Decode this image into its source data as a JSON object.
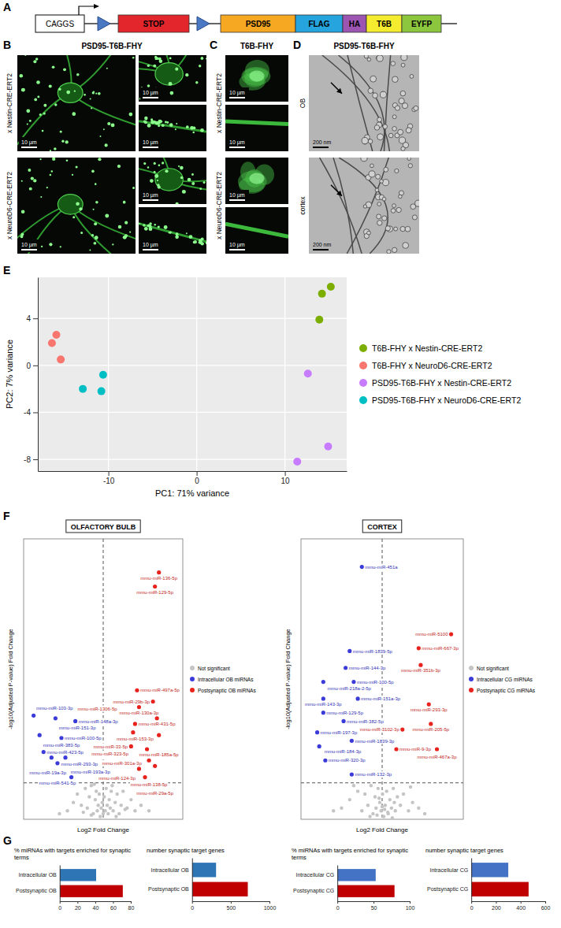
{
  "panel_letters": [
    "A",
    "B",
    "C",
    "D",
    "E",
    "F",
    "G"
  ],
  "construct": {
    "promoter": "CAGGS",
    "elements": [
      {
        "label": "STOP",
        "color": "#e3262b"
      },
      {
        "label": "PSD95",
        "color": "#f7a823"
      },
      {
        "label": "FLAG",
        "color": "#25a4dd"
      },
      {
        "label": "HA",
        "color": "#9c55b0"
      },
      {
        "label": "T6B",
        "color": "#f5ec2f"
      },
      {
        "label": "EYFP",
        "color": "#8cc63f"
      }
    ]
  },
  "images": {
    "B": {
      "title": "PSD95-T6B-FHY",
      "rows": [
        "x Nestin-CRE-ERT2",
        "x NeuroD6-CRE-ERT2"
      ],
      "scale_bar": "10 µm"
    },
    "C": {
      "title": "T6B-FHY",
      "rows": [
        "x Nestin-CRE-ERT2",
        "x NeuroD6-CRE-ERT2"
      ],
      "scale_bar": "10 µm"
    },
    "D": {
      "title": "PSD95-T6B-FHY",
      "rows": [
        "OB",
        "cortex"
      ],
      "scale_bar": "200 nm"
    }
  },
  "chart_data": [
    {
      "type": "scatter",
      "xlabel": "PC1: 71% variance",
      "ylabel": "PC2: 7% variance",
      "xlim": [
        -18,
        17
      ],
      "ylim": [
        -9,
        7.5
      ],
      "xticks": [
        -10,
        0,
        10
      ],
      "yticks": [
        -8,
        -4,
        0,
        4
      ],
      "grid": true,
      "legend": "right",
      "series": [
        {
          "name": "T6B-FHY x Nestin-CRE-ERT2",
          "color": "#7CAE00",
          "x": [
            15.2,
            14.2,
            13.9
          ],
          "values": [
            6.7,
            6.1,
            3.9
          ]
        },
        {
          "name": "T6B-FHY x NeuroD6-CRE-ERT2",
          "color": "#F8766D",
          "x": [
            -16.4,
            -15.9,
            -15.4
          ],
          "values": [
            1.9,
            2.6,
            0.5
          ]
        },
        {
          "name": "PSD95-T6B-FHY x Nestin-CRE-ERT2",
          "color": "#C77CFF",
          "x": [
            12.6,
            11.4,
            14.9
          ],
          "values": [
            -0.7,
            -8.2,
            -6.9
          ]
        },
        {
          "name": "PSD95-T6B-FHY x NeuroD6-CRE-ERT2",
          "color": "#00BFC4",
          "x": [
            -12.9,
            -10.6,
            -10.8
          ],
          "values": [
            -2.0,
            -0.8,
            -2.2
          ]
        }
      ]
    },
    {
      "type": "volcano",
      "title": "OLFACTORY BULB",
      "xlabel": "Log2 Fold Change",
      "ylabel": "-log10(Adjusted P-value) Fold Change",
      "xlim": [
        -4,
        4
      ],
      "ylim": [
        0,
        10
      ],
      "tick_labels": false,
      "legend": "right",
      "reference_lines": {
        "x": 0,
        "y": 1.3
      },
      "series": [
        {
          "name": "Not significant",
          "color": "#c4c4c4",
          "x": [
            -1.8,
            -1.5,
            -1.3,
            -1.1,
            -0.9,
            -0.8,
            -0.7,
            -0.6,
            -0.5,
            -0.4,
            -0.35,
            -0.3,
            -0.25,
            -0.2,
            -0.15,
            -0.1,
            -0.05,
            0,
            0.05,
            0.1,
            0.15,
            0.2,
            0.25,
            0.3,
            0.35,
            0.4,
            0.5,
            0.6,
            0.7,
            0.8,
            0.9,
            1.0,
            1.2,
            1.4,
            1.6,
            1.9,
            -2.2,
            2.3,
            -0.45,
            0.45,
            -0.6,
            0.65,
            -1.0,
            1.1
          ],
          "values": [
            0.3,
            0.6,
            0.9,
            0.5,
            1.1,
            0.4,
            0.8,
            1.2,
            0.2,
            0.7,
            1.0,
            0.3,
            0.5,
            0.9,
            0.1,
            0.4,
            0.6,
            0.2,
            0.8,
            0.3,
            1.1,
            0.5,
            0.2,
            0.7,
            0.4,
            1.0,
            0.3,
            0.6,
            0.9,
            0.2,
            0.5,
            1.0,
            0.4,
            0.7,
            0.3,
            0.5,
            0.2,
            0.3,
            1.25,
            1.2,
            0.15,
            0.1,
            0.25,
            0.35
          ]
        },
        {
          "name": "Intracellular OB miRNAs",
          "color": "#3b3bd9",
          "x": [
            -3.5,
            -2.4,
            -1.4,
            -3.2,
            -2.1,
            -3.0,
            -2.6,
            -2.3,
            -1.9,
            -1.6
          ],
          "values": [
            3.7,
            3.6,
            3.5,
            3.0,
            2.9,
            2.4,
            2.2,
            2.0,
            2.2,
            1.5
          ],
          "labels": [
            "mmu-miR-103-3p",
            "mmu-miR-151-3p",
            "mmu-miR-148a-3p",
            "mmu-miR-383-5p",
            "mmu-miR-100-5p",
            "mmu-miR-423-5p",
            "mmu-miR-293-3p",
            "mmu-miR-541-5p",
            "mmu-miR-193a-3p",
            "mmu-miR-19a-3p"
          ]
        },
        {
          "name": "Postsynaptic OB miRNAs",
          "color": "#e8231e",
          "x": [
            2.8,
            2.6,
            1.7,
            1.8,
            2.5,
            2.7,
            1.6,
            1.5,
            2.8,
            1.4,
            2.2,
            2.3,
            2.6,
            1.8,
            2.1
          ],
          "values": [
            8.8,
            8.3,
            4.6,
            4.0,
            4.2,
            3.6,
            3.4,
            3.1,
            3.0,
            2.6,
            2.5,
            2.1,
            1.9,
            1.8,
            1.5
          ],
          "labels": [
            "mmu-miR-136-5p",
            "mmu-miR-129-5p",
            "mmu-miR-497a-5p",
            "mmu-miR-130a-3p",
            "mmu-miR-29b-3p",
            "mmu-miR-431-5p",
            "mmu-miR-153-3p",
            "mmu-miR-33-5p",
            "mmu-miR-185a-5p",
            "mmu-miR-323-5p",
            "mmu-miR-301a-3p",
            "mmu-miR-138-5p",
            "mmu-miR-29a-5p",
            "mmu-miR-124-3p",
            "mmu-miR-1306-5p"
          ]
        }
      ]
    },
    {
      "type": "volcano",
      "title": "CORTEX",
      "xlabel": "Log2 Fold Change",
      "ylabel": "-log10(Adjusted P-value) Fold Change",
      "xlim": [
        -4,
        4
      ],
      "ylim": [
        0,
        10
      ],
      "tick_labels": false,
      "legend": "right",
      "reference_lines": {
        "x": 0,
        "y": 1.3
      },
      "series": [
        {
          "name": "Not significant",
          "color": "#c4c4c4",
          "x": [
            -2.0,
            -1.6,
            -1.2,
            -1.0,
            -0.85,
            -0.7,
            -0.55,
            -0.45,
            -0.35,
            -0.3,
            -0.2,
            -0.12,
            -0.05,
            0.02,
            0.08,
            0.15,
            0.22,
            0.3,
            0.38,
            0.46,
            0.55,
            0.65,
            0.75,
            0.9,
            1.05,
            1.3,
            1.5,
            1.8,
            2.1,
            -2.4,
            -0.25,
            0.28,
            -0.6,
            0.6,
            -1.4,
            1.4,
            0.0,
            -0.15,
            0.12,
            0.5
          ],
          "values": [
            0.4,
            0.7,
            1.0,
            0.3,
            0.9,
            0.5,
            1.2,
            0.2,
            0.8,
            0.4,
            1.1,
            0.6,
            0.3,
            0.9,
            0.1,
            0.5,
            1.0,
            0.2,
            0.7,
            0.4,
            1.1,
            0.3,
            0.8,
            0.5,
            0.9,
            0.3,
            0.6,
            0.4,
            0.2,
            0.3,
            0.15,
            0.25,
            0.1,
            0.6,
            1.2,
            1.15,
            0.45,
            0.75,
            0.35,
            0.05
          ]
        },
        {
          "name": "Intracellular CG miRNAs",
          "color": "#3b3bd9",
          "x": [
            -1.0,
            -1.6,
            -1.8,
            -2.9,
            -1.4,
            -2.9,
            -1.2,
            -2.9,
            -1.9,
            -3.2,
            -1.5,
            -3.1,
            -2.8,
            -1.5
          ],
          "values": [
            9.0,
            6.0,
            5.4,
            4.9,
            4.9,
            4.3,
            4.3,
            3.8,
            3.5,
            3.1,
            2.8,
            2.6,
            2.1,
            1.6
          ],
          "labels": [
            "mmu-miR-451a",
            "mmu-miR-1839-5p",
            "mmu-miR-144-3p",
            "mmu-miR-218a-2-5p",
            "mmu-miR-100-5p",
            "mmu-miR-143-3p",
            "mmu-miR-151a-3p",
            "mmu-miR-129-5p",
            "mmu-miR-382-5p",
            "mmu-miR-197-3p",
            "mmu-miR-1839-3p",
            "mmu-miR-184-3p",
            "mmu-miR-320-3p",
            "mmu-miR-132-3p"
          ]
        },
        {
          "name": "Postsynaptic CG miRNAs",
          "color": "#e8231e",
          "x": [
            3.4,
            1.8,
            1.9,
            2.3,
            2.4,
            1.0,
            0.7,
            2.7
          ],
          "values": [
            6.6,
            6.1,
            5.5,
            4.1,
            3.4,
            3.2,
            2.5,
            2.5
          ],
          "labels": [
            "mmu-miR-5100",
            "mmu-miR-667-3p",
            "mmu-miR-351b-3p",
            "mmu-miR-293-3p",
            "mmu-miR-205-5p",
            "mmu-miR-3102-3p",
            "mmu-miR-9-3p",
            "mmu-miR-467a-3p"
          ]
        }
      ]
    },
    {
      "type": "bar",
      "orientation": "horizontal",
      "title": "% miRNAs with targets enriched for synaptic terms",
      "categories": [
        "Intracellular OB",
        "Postsynaptic OB"
      ],
      "values": [
        41,
        71
      ],
      "colors": [
        "#2e75b6",
        "#c00000"
      ],
      "xlim": [
        0,
        80
      ],
      "xticks": [
        0,
        20,
        40,
        60,
        80
      ]
    },
    {
      "type": "bar",
      "orientation": "horizontal",
      "title": "number synaptic target genes",
      "categories": [
        "Intracellular OB",
        "Postsynaptic OB"
      ],
      "values": [
        310,
        720
      ],
      "colors": [
        "#2e75b6",
        "#c00000"
      ],
      "xlim": [
        0,
        1000
      ],
      "xticks": [
        0,
        500,
        1000
      ]
    },
    {
      "type": "bar",
      "orientation": "horizontal",
      "title": "% miRNAs with targets enriched for synaptic terms",
      "categories": [
        "Intracellular CG",
        "Postsynaptic CG"
      ],
      "values": [
        53,
        79
      ],
      "colors": [
        "#4472c4",
        "#c00000"
      ],
      "xlim": [
        0,
        100
      ],
      "xticks": [
        0,
        50,
        100
      ]
    },
    {
      "type": "bar",
      "orientation": "horizontal",
      "title": "number synaptic target genes",
      "categories": [
        "Intracellular CG",
        "Postsynaptic CG"
      ],
      "values": [
        300,
        465
      ],
      "colors": [
        "#4472c4",
        "#c00000"
      ],
      "xlim": [
        0,
        600
      ],
      "xticks": [
        0,
        200,
        400,
        600
      ]
    }
  ]
}
